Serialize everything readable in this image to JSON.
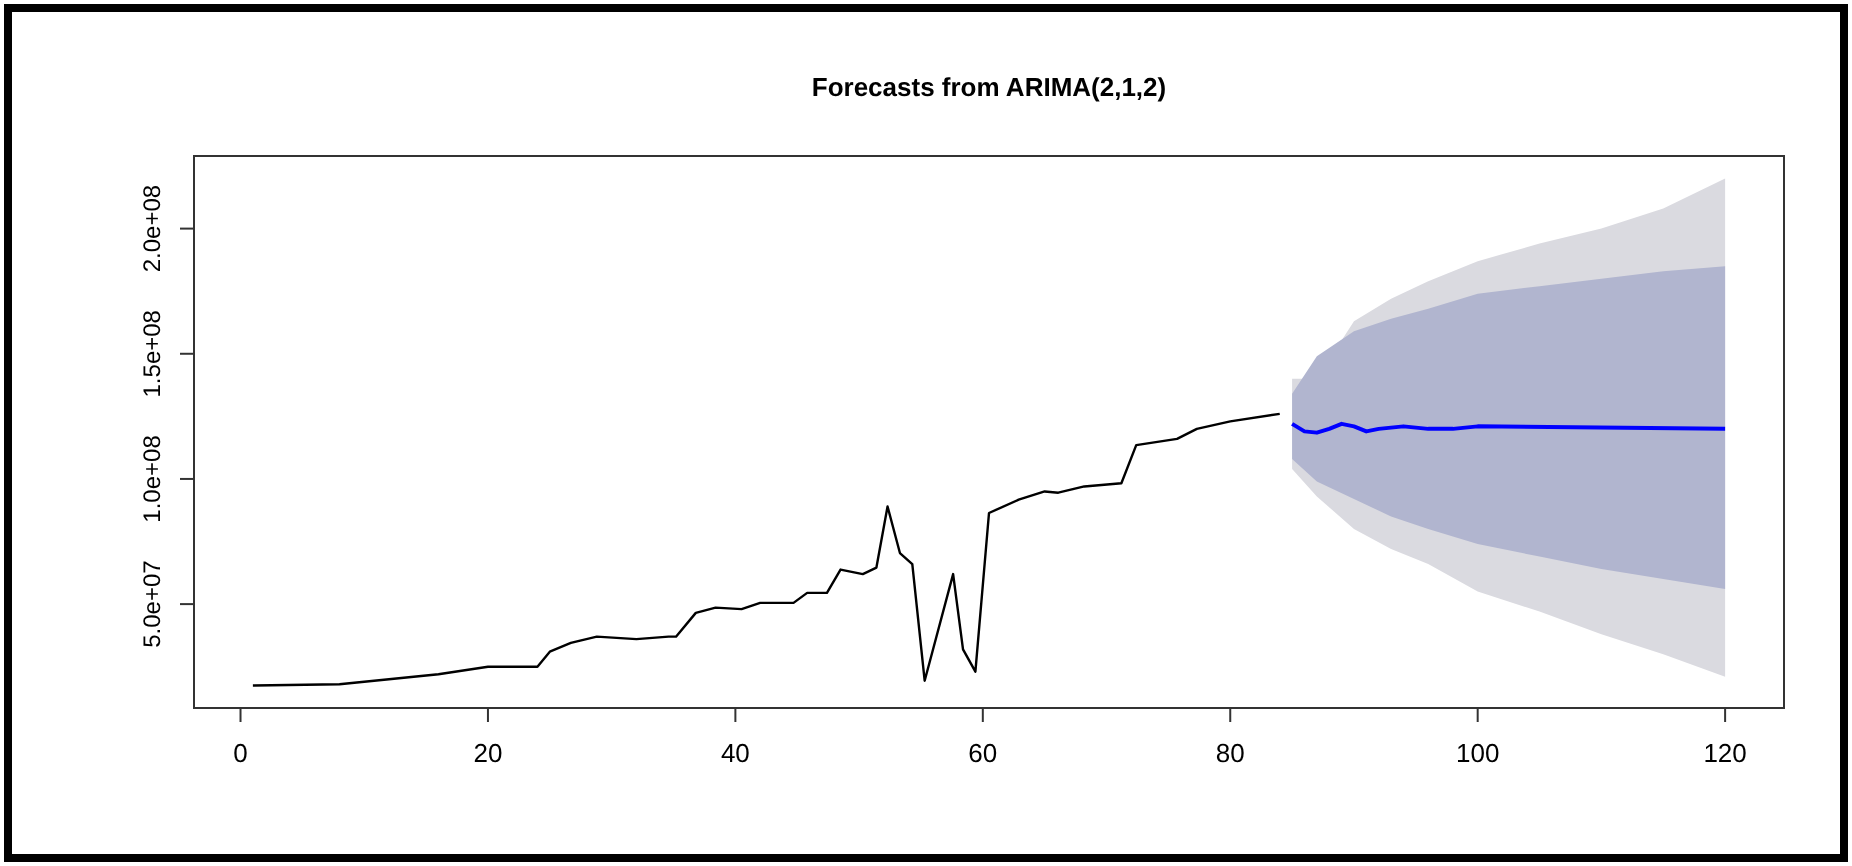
{
  "chart_data": {
    "type": "line",
    "title": "Forecasts from ARIMA(2,1,2)",
    "xlim": [
      -3.76,
      124.76
    ],
    "xticks": [
      0,
      20,
      40,
      60,
      80,
      100,
      120
    ],
    "ylim": [
      8500000,
      229000000
    ],
    "yticks": [
      {
        "value": 50000000,
        "label": "5.0e+07"
      },
      {
        "value": 100000000,
        "label": "1.0e+08"
      },
      {
        "value": 150000000,
        "label": "1.5e+08"
      },
      {
        "value": 200000000,
        "label": "2.0e+08"
      }
    ],
    "grid": false,
    "series": [
      {
        "color": "#dadae0",
        "x": [
          85,
          87,
          90,
          93,
          96,
          100,
          105,
          110,
          115,
          120
        ],
        "values": [
          null,
          null,
          null,
          null,
          null,
          null,
          null,
          null,
          null,
          null
        ],
        "lower": [
          104000000,
          93000000,
          80000000,
          72000000,
          66000000,
          55000000,
          47000000,
          38000000,
          30000000,
          21000000
        ],
        "upper": [
          140000000,
          140000000,
          163000000,
          172000000,
          179000000,
          187000000,
          194000000,
          200000000,
          208000000,
          220000000
        ]
      },
      {
        "color": "#b1b5cf",
        "x": [
          85,
          87,
          90,
          93,
          96,
          100,
          105,
          110,
          115,
          120
        ],
        "values": [
          null,
          null,
          null,
          null,
          null,
          null,
          null,
          null,
          null,
          null
        ],
        "lower": [
          108000000,
          99000000,
          92000000,
          85000000,
          80000000,
          74000000,
          69000000,
          64000000,
          60000000,
          56000000
        ],
        "upper": [
          134000000,
          149000000,
          159000000,
          164000000,
          168000000,
          174000000,
          177000000,
          180000000,
          183000000,
          185000000
        ]
      },
      {
        "color": "#000000",
        "x": [
          1,
          8,
          10,
          12,
          16,
          20,
          24,
          25,
          26.7,
          28.8,
          32,
          34.6,
          35.2,
          36.8,
          38.4,
          40.5,
          42,
          44.7,
          45.8,
          47.4,
          48.5,
          50.3,
          51.4,
          52.3,
          53.3,
          54.3,
          55.3,
          57.6,
          58.4,
          59.4,
          60.5,
          62.9,
          65,
          66.1,
          68.2,
          71.2,
          72.4,
          75.7,
          77.3,
          80,
          84
        ],
        "values": [
          17500000,
          18000000,
          19000000,
          20000000,
          22000000,
          25000000,
          25000000,
          31000000,
          34500000,
          37000000,
          36000000,
          37000000,
          37000000,
          46500000,
          48600000,
          48000000,
          50500000,
          50500000,
          54500000,
          54500000,
          63800000,
          62000000,
          64600000,
          89000000,
          70400000,
          66000000,
          19400000,
          62000000,
          31900000,
          23000000,
          86400000,
          91700000,
          95000000,
          94500000,
          97000000,
          98300000,
          113500000,
          116000000,
          120000000,
          123000000,
          126000000
        ]
      },
      {
        "color": "#0000ff",
        "x": [
          85,
          86,
          87,
          88,
          89,
          90,
          91,
          92,
          94,
          96,
          98,
          100,
          120
        ],
        "values": [
          122000000,
          119000000,
          118500000,
          120000000,
          122000000,
          121000000,
          119000000,
          120000000,
          121000000,
          120000000,
          120000000,
          121000000,
          120000000
        ]
      }
    ]
  }
}
